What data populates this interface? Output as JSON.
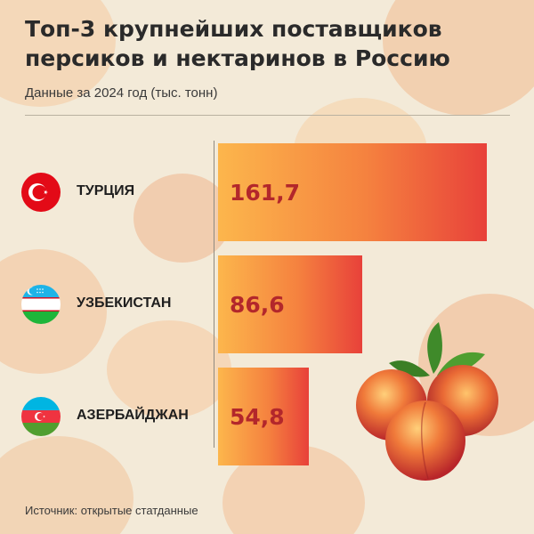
{
  "title_line1": "Топ-3 крупнейших поставщиков",
  "title_line2": "персиков и нектаринов в Россию",
  "subtitle": "Данные за 2024 год (тыс. тонн)",
  "source": "Источник: открытые статданные",
  "colors": {
    "bar_start": "#fcb64c",
    "bar_end": "#e8413a",
    "value_text": "#b3272b",
    "background": "#f3ead8"
  },
  "chart_data": {
    "type": "bar",
    "orientation": "horizontal",
    "categories": [
      "ТУРЦИЯ",
      "УЗБЕКИСТАН",
      "АЗЕРБАЙДЖАН"
    ],
    "values": [
      161.7,
      86.6,
      54.8
    ],
    "value_labels": [
      "161,7",
      "86,6",
      "54,8"
    ],
    "icons": [
      "turkey-flag-icon",
      "uzbekistan-flag-icon",
      "azerbaijan-flag-icon"
    ],
    "title": "Топ-3 крупнейших поставщиков персиков и нектаринов в Россию",
    "subtitle": "Данные за 2024 год (тыс. тонн)",
    "grid": false,
    "legend": "none"
  },
  "decoration": {
    "icon": "peaches-icon"
  }
}
